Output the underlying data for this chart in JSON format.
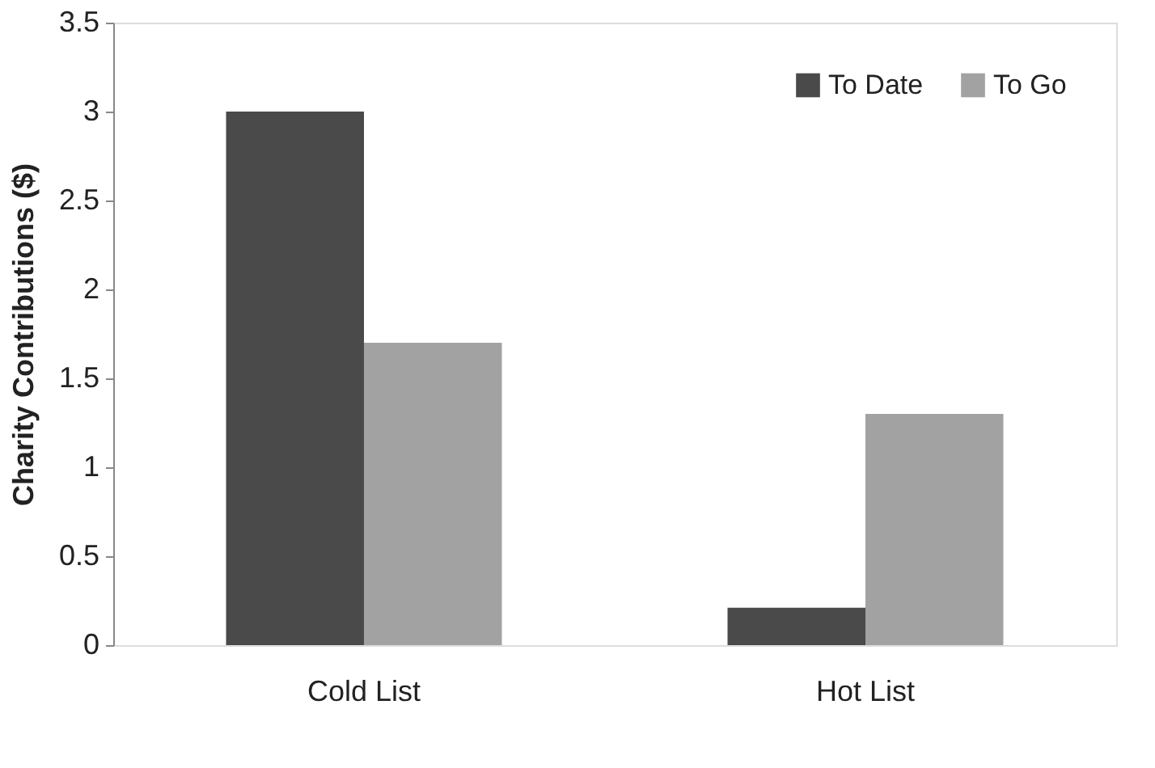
{
  "chart_data": {
    "type": "bar",
    "ylabel": "Charity Contributions ($)",
    "categories": [
      "Cold List",
      "Hot List"
    ],
    "series": [
      {
        "name": "To Date",
        "color": "#4a4a4a",
        "values": [
          3,
          0.21
        ]
      },
      {
        "name": "To Go",
        "color": "#a2a2a2",
        "values": [
          1.7,
          1.3
        ]
      }
    ],
    "ylim": [
      0,
      3.5
    ],
    "yticks": [
      0,
      0.5,
      1,
      1.5,
      2,
      2.5,
      3,
      3.5
    ],
    "grid": false,
    "legend": "top right"
  }
}
